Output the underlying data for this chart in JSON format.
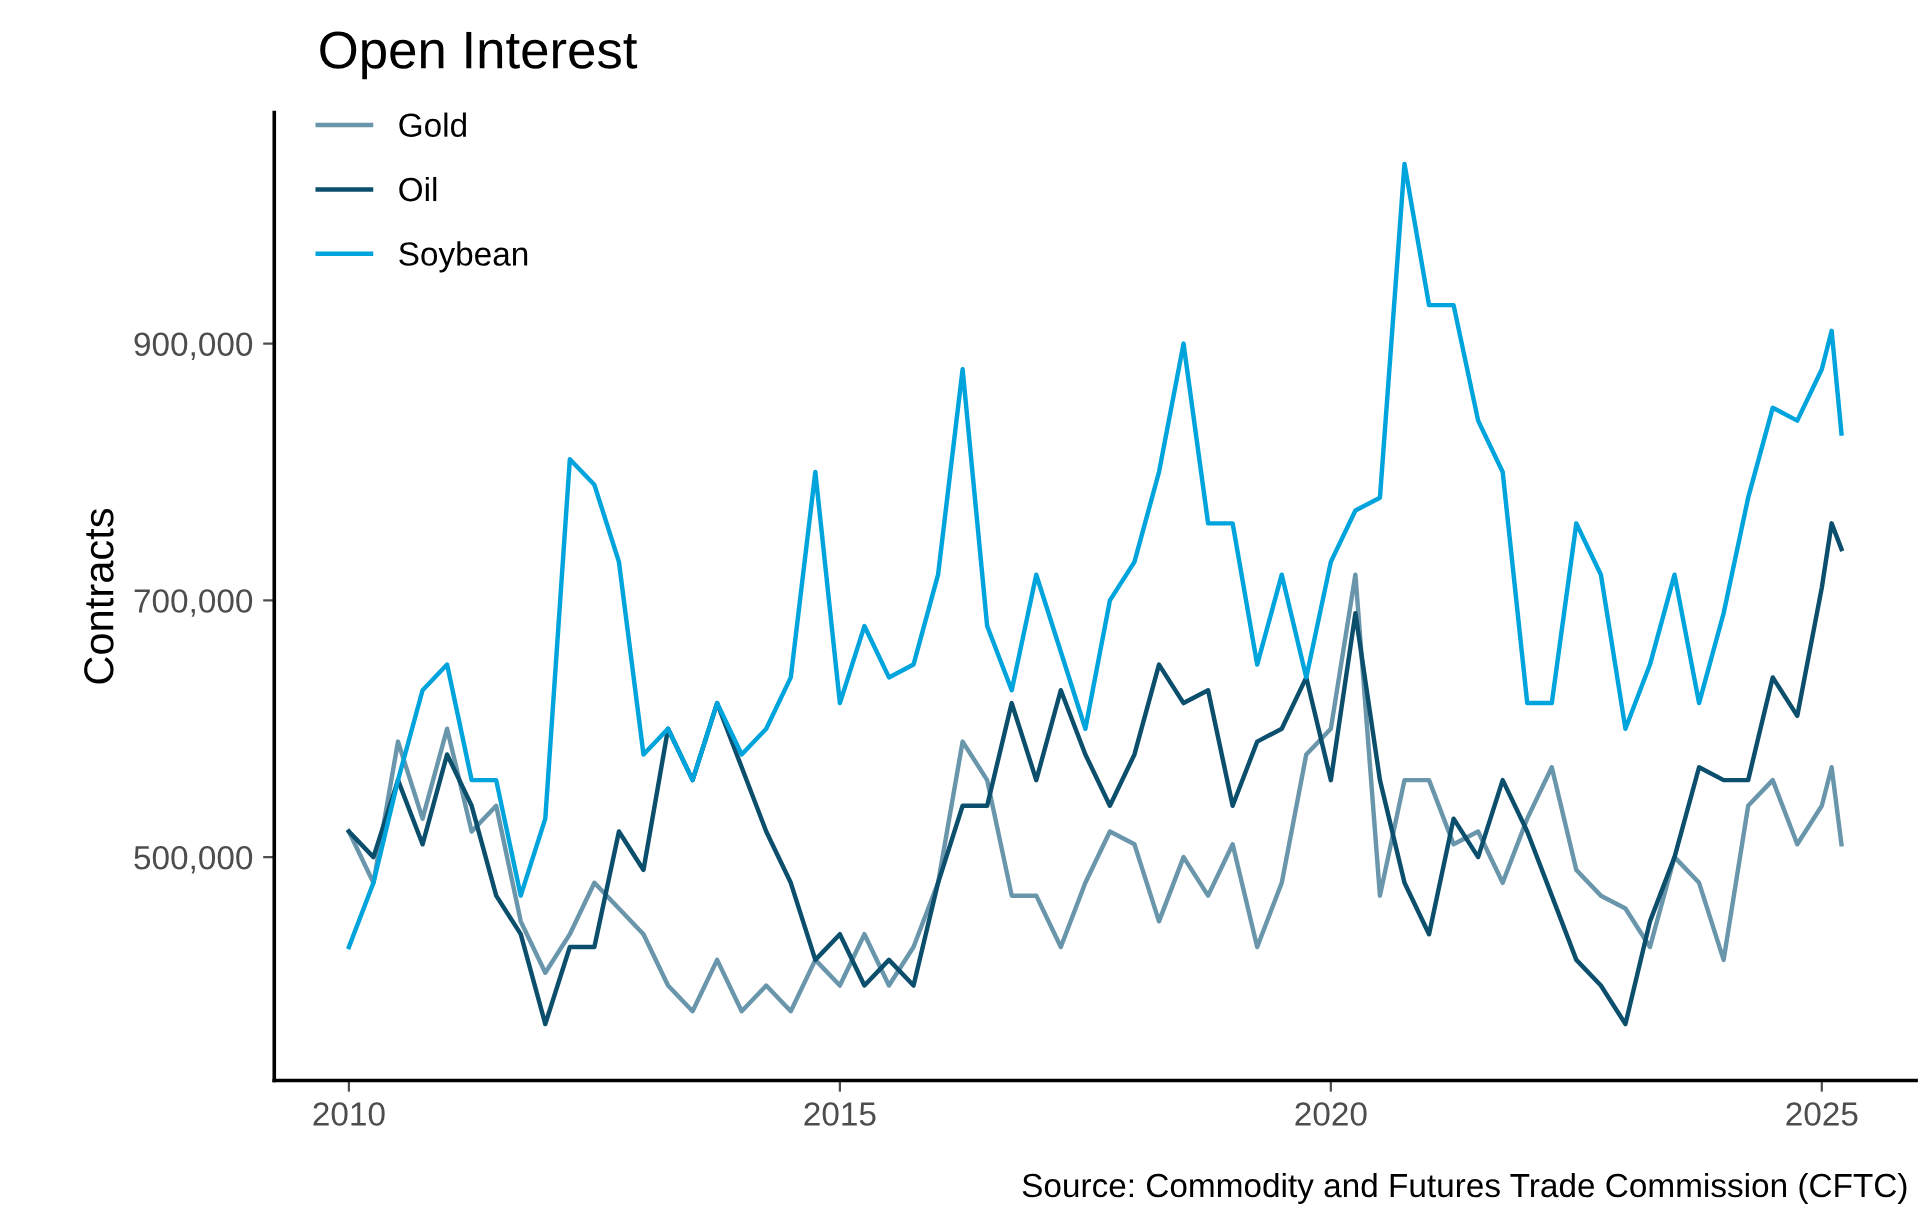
{
  "chart_data": {
    "type": "line",
    "legend_title": "Open Interest",
    "ylabel": "Contracts",
    "annotations": [
      "Source: Commodity and Futures Trade Commission (CFTC)"
    ],
    "x": [
      2010.0,
      2010.25,
      2010.5,
      2010.75,
      2011.0,
      2011.25,
      2011.5,
      2011.75,
      2012.0,
      2012.25,
      2012.5,
      2012.75,
      2013.0,
      2013.25,
      2013.5,
      2013.75,
      2014.0,
      2014.25,
      2014.5,
      2014.75,
      2015.0,
      2015.25,
      2015.5,
      2015.75,
      2016.0,
      2016.25,
      2016.5,
      2016.75,
      2017.0,
      2017.25,
      2017.5,
      2017.75,
      2018.0,
      2018.25,
      2018.5,
      2018.75,
      2019.0,
      2019.25,
      2019.5,
      2019.75,
      2020.0,
      2020.25,
      2020.5,
      2020.75,
      2021.0,
      2021.25,
      2021.5,
      2021.75,
      2022.0,
      2022.25,
      2022.5,
      2022.75,
      2023.0,
      2023.25,
      2023.5,
      2023.75,
      2024.0,
      2024.25,
      2024.5,
      2024.75,
      2025.0,
      2025.1,
      2025.2
    ],
    "series": [
      {
        "name": "Gold",
        "color": "#6a96ac",
        "values": [
          520000,
          480000,
          590000,
          530000,
          600000,
          520000,
          540000,
          450000,
          410000,
          440000,
          480000,
          460000,
          440000,
          400000,
          380000,
          420000,
          380000,
          400000,
          380000,
          420000,
          400000,
          440000,
          400000,
          430000,
          480000,
          590000,
          560000,
          470000,
          470000,
          430000,
          480000,
          520000,
          510000,
          450000,
          500000,
          470000,
          510000,
          430000,
          480000,
          580000,
          600000,
          720000,
          470000,
          560000,
          560000,
          510000,
          520000,
          480000,
          530000,
          570000,
          490000,
          470000,
          460000,
          430000,
          500000,
          480000,
          420000,
          540000,
          560000,
          510000,
          540000,
          570000,
          510000
        ]
      },
      {
        "name": "Oil",
        "color": "#0b4f6c",
        "values": [
          520000,
          500000,
          560000,
          510000,
          580000,
          540000,
          470000,
          440000,
          370000,
          430000,
          430000,
          520000,
          490000,
          600000,
          560000,
          620000,
          570000,
          520000,
          480000,
          420000,
          440000,
          400000,
          420000,
          400000,
          480000,
          540000,
          540000,
          620000,
          560000,
          630000,
          580000,
          540000,
          580000,
          650000,
          620000,
          630000,
          540000,
          590000,
          600000,
          640000,
          560000,
          690000,
          560000,
          480000,
          440000,
          530000,
          500000,
          560000,
          520000,
          470000,
          420000,
          400000,
          370000,
          450000,
          500000,
          570000,
          560000,
          560000,
          640000,
          610000,
          710000,
          760000,
          740000
        ]
      },
      {
        "name": "Soybean",
        "color": "#00a4dc",
        "values": [
          430000,
          480000,
          560000,
          630000,
          650000,
          560000,
          560000,
          470000,
          530000,
          810000,
          790000,
          730000,
          580000,
          600000,
          560000,
          620000,
          580000,
          600000,
          640000,
          800000,
          620000,
          680000,
          640000,
          650000,
          720000,
          880000,
          680000,
          630000,
          720000,
          660000,
          600000,
          700000,
          730000,
          800000,
          900000,
          760000,
          760000,
          650000,
          720000,
          640000,
          730000,
          770000,
          780000,
          1040000,
          930000,
          930000,
          840000,
          800000,
          620000,
          620000,
          760000,
          720000,
          600000,
          650000,
          720000,
          620000,
          690000,
          780000,
          850000,
          840000,
          880000,
          910000,
          830000
        ]
      }
    ],
    "xlim": [
      2009.24,
      2025.96
    ],
    "ylim": [
      326000,
      1080000
    ],
    "xticks": [
      2010,
      2015,
      2020,
      2025
    ],
    "yticks": [
      {
        "value": 500000,
        "label": "500,000"
      },
      {
        "value": 700000,
        "label": "700,000"
      },
      {
        "value": 900000,
        "label": "900,000"
      }
    ],
    "grid": false,
    "legend": "top left",
    "marker": "none",
    "line_style": "solid"
  }
}
